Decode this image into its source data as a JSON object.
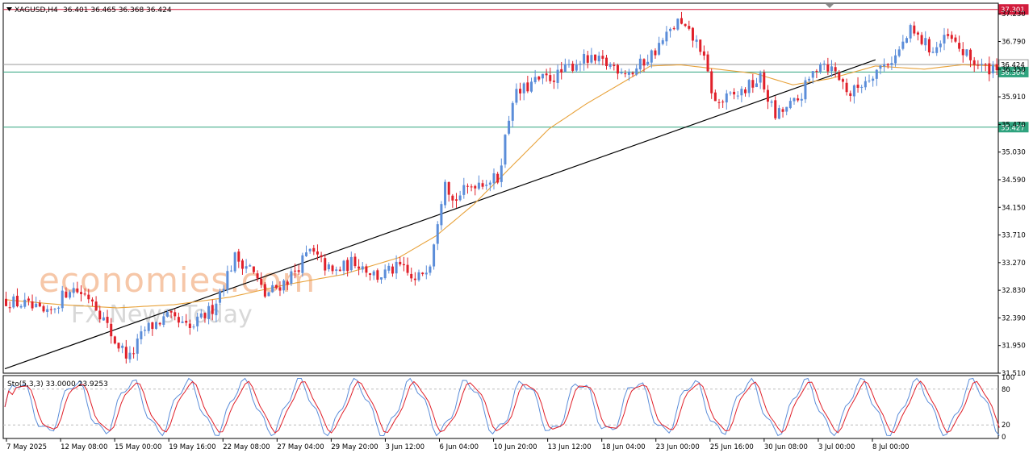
{
  "header": {
    "symbol": "XAGUSD,H4",
    "ohlc": "36.401 36.465 36.368 36.424"
  },
  "watermark": {
    "brand": "economies.com",
    "sub": "FX News Today"
  },
  "colors": {
    "bull": "#5b8dd9",
    "bear": "#e0202a",
    "ma": "#e8a23a",
    "resistance": "#d21c3c",
    "support": "#2fa37e",
    "trendline": "#000000",
    "stoch_main": "#5b8dd9",
    "stoch_signal": "#e0202a"
  },
  "chart_data": [
    {
      "type": "candlestick",
      "symbol": "XAGUSD",
      "timeframe": "H4",
      "ylim": [
        31.51,
        37.4
      ],
      "y_ticks": [
        "37.230",
        "36.790",
        "36.350",
        "35.910",
        "35.470",
        "35.030",
        "34.590",
        "34.150",
        "33.710",
        "33.270",
        "32.830",
        "32.390",
        "31.950",
        "31.510"
      ],
      "x_ticks": [
        "7 May 2025",
        "12 May 08:00",
        "15 May 00:00",
        "19 May 16:00",
        "22 May 08:00",
        "27 May 04:00",
        "29 May 20:00",
        "3 Jun 12:00",
        "6 Jun 04:00",
        "10 Jun 20:00",
        "13 Jun 12:00",
        "18 Jun 04:00",
        "23 Jun 00:00",
        "25 Jun 16:00",
        "30 Jun 08:00",
        "3 Jul 00:00",
        "8 Jul 00:00"
      ],
      "levels": [
        {
          "label": "37.301",
          "value": 37.301,
          "kind": "resistance"
        },
        {
          "label": "36.424",
          "value": 36.424,
          "kind": "bid"
        },
        {
          "label": "36.304",
          "value": 36.304,
          "kind": "support"
        },
        {
          "label": "35.427",
          "value": 35.427,
          "kind": "support"
        }
      ],
      "trendline": {
        "from": {
          "bar": 0,
          "value": 31.58
        },
        "to": {
          "bar": 232,
          "value": 36.5
        }
      },
      "moving_average": [
        [
          0,
          32.68
        ],
        [
          15,
          32.6
        ],
        [
          30,
          32.55
        ],
        [
          45,
          32.6
        ],
        [
          60,
          32.72
        ],
        [
          75,
          32.92
        ],
        [
          90,
          33.08
        ],
        [
          105,
          33.35
        ],
        [
          115,
          33.7
        ],
        [
          125,
          34.2
        ],
        [
          135,
          34.8
        ],
        [
          145,
          35.4
        ],
        [
          155,
          35.8
        ],
        [
          165,
          36.15
        ],
        [
          172,
          36.4
        ],
        [
          180,
          36.42
        ],
        [
          190,
          36.35
        ],
        [
          200,
          36.28
        ],
        [
          210,
          36.1
        ],
        [
          220,
          36.2
        ],
        [
          232,
          36.4
        ],
        [
          245,
          36.35
        ],
        [
          255,
          36.42
        ],
        [
          265,
          36.4
        ]
      ],
      "price_path": [
        [
          0,
          32.68
        ],
        [
          6,
          32.6
        ],
        [
          12,
          32.42
        ],
        [
          18,
          32.88
        ],
        [
          24,
          32.7
        ],
        [
          30,
          32.02
        ],
        [
          34,
          31.75
        ],
        [
          38,
          32.2
        ],
        [
          44,
          32.4
        ],
        [
          50,
          32.2
        ],
        [
          56,
          32.55
        ],
        [
          62,
          33.35
        ],
        [
          66,
          33.2
        ],
        [
          70,
          32.75
        ],
        [
          76,
          33.0
        ],
        [
          82,
          33.45
        ],
        [
          88,
          33.1
        ],
        [
          94,
          33.3
        ],
        [
          100,
          33.05
        ],
        [
          106,
          33.2
        ],
        [
          110,
          32.95
        ],
        [
          114,
          33.3
        ],
        [
          118,
          34.65
        ],
        [
          120,
          34.25
        ],
        [
          126,
          34.55
        ],
        [
          132,
          34.6
        ],
        [
          136,
          35.9
        ],
        [
          142,
          36.15
        ],
        [
          148,
          36.25
        ],
        [
          154,
          36.5
        ],
        [
          160,
          36.45
        ],
        [
          168,
          36.3
        ],
        [
          174,
          36.65
        ],
        [
          180,
          37.1
        ],
        [
          186,
          36.7
        ],
        [
          190,
          35.8
        ],
        [
          196,
          35.95
        ],
        [
          202,
          36.2
        ],
        [
          206,
          35.6
        ],
        [
          212,
          35.85
        ],
        [
          218,
          36.5
        ],
        [
          222,
          36.3
        ],
        [
          226,
          35.95
        ],
        [
          232,
          36.3
        ],
        [
          238,
          36.55
        ],
        [
          242,
          36.95
        ],
        [
          248,
          36.65
        ],
        [
          252,
          36.85
        ],
        [
          258,
          36.5
        ],
        [
          262,
          36.35
        ],
        [
          265,
          36.42
        ]
      ]
    },
    {
      "type": "stochastic",
      "label": "Sto(5,3,3) 33.0000 23.9253",
      "ylim": [
        0,
        100
      ],
      "levels": [
        "100",
        "80",
        "20",
        "0"
      ]
    }
  ]
}
